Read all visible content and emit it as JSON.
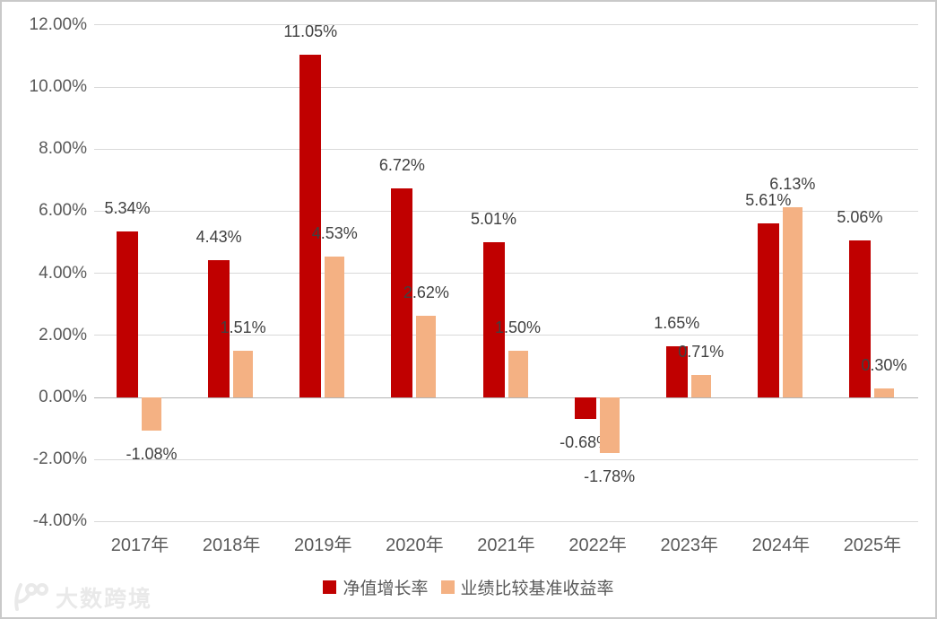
{
  "chart_data": {
    "type": "bar",
    "categories": [
      "2017年",
      "2018年",
      "2019年",
      "2020年",
      "2021年",
      "2022年",
      "2023年",
      "2024年",
      "2025年"
    ],
    "series": [
      {
        "key": "net-growth",
        "name": "净值增长率",
        "color": "#C00000",
        "values": [
          5.34,
          4.43,
          11.05,
          6.72,
          5.01,
          -0.68,
          1.65,
          5.61,
          5.06
        ],
        "labels": [
          "5.34%",
          "4.43%",
          "11.05%",
          "6.72%",
          "5.01%",
          "-0.68%",
          "1.65%",
          "5.61%",
          "5.06%"
        ]
      },
      {
        "key": "benchmark",
        "name": "业绩比较基准收益率",
        "color": "#F4B183",
        "values": [
          -1.08,
          1.51,
          4.53,
          2.62,
          1.5,
          -1.78,
          0.71,
          6.13,
          0.3
        ],
        "labels": [
          "-1.08%",
          "1.51%",
          "4.53%",
          "2.62%",
          "1.50%",
          "-1.78%",
          "0.71%",
          "6.13%",
          "0.30%"
        ]
      }
    ],
    "title": "",
    "xlabel": "",
    "ylabel": "",
    "ylim": [
      -4,
      12
    ],
    "y_ticks": [
      {
        "value": 12,
        "label": "12.00%"
      },
      {
        "value": 10,
        "label": "10.00%"
      },
      {
        "value": 8,
        "label": "8.00%"
      },
      {
        "value": 6,
        "label": "6.00%"
      },
      {
        "value": 4,
        "label": "4.00%"
      },
      {
        "value": 2,
        "label": "2.00%"
      },
      {
        "value": 0,
        "label": "0.00%"
      },
      {
        "value": -2,
        "label": "-2.00%"
      },
      {
        "value": -4,
        "label": "-4.00%"
      }
    ],
    "grid": true,
    "legend_position": "bottom"
  },
  "colors": {
    "series1": "#C00000",
    "series2": "#F4B183",
    "gridline": "#D9D9D9",
    "axis_text": "#595959",
    "data_label_text": "#404040"
  },
  "watermark": {
    "text": "大数跨境"
  }
}
